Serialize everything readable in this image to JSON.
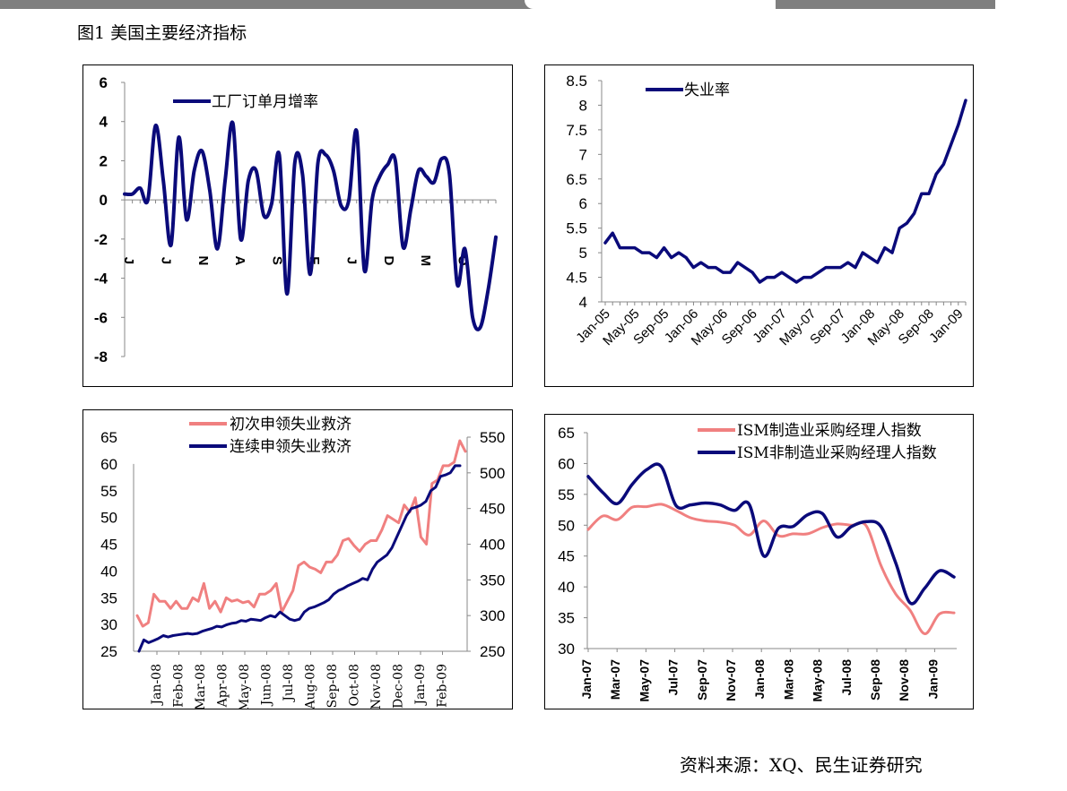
{
  "figure": {
    "title": "图1 美国主要经济指标",
    "source": "资料来源：XQ、民生证券研究"
  },
  "chart_data": [
    {
      "type": "line",
      "id": "factory-orders",
      "legend": [
        "工厂订单月增率"
      ],
      "ylim": [
        -8,
        6
      ],
      "yticks": [
        -8,
        -6,
        -4,
        -2,
        0,
        2,
        4,
        6
      ],
      "xtick_labels": [
        "J",
        "J",
        "N",
        "A",
        "S",
        "F",
        "J",
        "D",
        "M",
        "O"
      ],
      "colors": {
        "line": "#0a0a7a"
      },
      "series": [
        {
          "name": "工厂订单月增率",
          "values": [
            0.3,
            0.3,
            0.6,
            0.0,
            3.8,
            1.0,
            -2.3,
            3.2,
            -1.0,
            1.5,
            2.5,
            0.5,
            -2.5,
            1.0,
            3.9,
            -2.0,
            1.0,
            1.5,
            -0.8,
            -0.2,
            2.3,
            -4.8,
            1.9,
            1.3,
            -3.8,
            1.9,
            2.3,
            1.5,
            -0.3,
            0.0,
            3.5,
            -3.6,
            0.0,
            1.2,
            1.8,
            2.0,
            -2.4,
            -0.5,
            1.5,
            1.2,
            0.9,
            2.1,
            1.3,
            -4.3,
            -2.5,
            -6.0,
            -6.5,
            -4.6,
            -1.9
          ]
        }
      ]
    },
    {
      "type": "line",
      "id": "unemployment",
      "legend": [
        "失业率"
      ],
      "ylim": [
        4,
        8.5
      ],
      "yticks": [
        "4",
        "4.5",
        "5",
        "5.5",
        "6",
        "6.5",
        "7",
        "7.5",
        "8",
        "8.5"
      ],
      "x_labels": [
        "Jan-05",
        "May-05",
        "Sep-05",
        "Jan-06",
        "May-06",
        "Sep-06",
        "Jan-07",
        "May-07",
        "Sep-07",
        "Jan-08",
        "May-08",
        "Sep-08",
        "Jan-09"
      ],
      "colors": {
        "line": "#0a0a7a"
      },
      "series": [
        {
          "name": "失业率",
          "values": [
            5.2,
            5.4,
            5.1,
            5.1,
            5.1,
            5.0,
            5.0,
            4.9,
            5.1,
            4.9,
            5.0,
            4.9,
            4.7,
            4.8,
            4.7,
            4.7,
            4.6,
            4.6,
            4.8,
            4.7,
            4.6,
            4.4,
            4.5,
            4.5,
            4.6,
            4.5,
            4.4,
            4.5,
            4.5,
            4.6,
            4.7,
            4.7,
            4.7,
            4.8,
            4.7,
            5.0,
            4.9,
            4.8,
            5.1,
            5.0,
            5.5,
            5.6,
            5.8,
            6.2,
            6.2,
            6.6,
            6.8,
            7.2,
            7.6,
            8.1
          ]
        }
      ]
    },
    {
      "type": "line",
      "id": "jobless-claims",
      "legend": [
        "初次申领失业救济",
        "连续申领失业救济"
      ],
      "ylim_left": [
        25,
        65
      ],
      "yticks_left": [
        25,
        30,
        35,
        40,
        45,
        50,
        55,
        60,
        65
      ],
      "ylim_right": [
        250,
        550
      ],
      "yticks_right": [
        250,
        300,
        350,
        400,
        450,
        500,
        550
      ],
      "x_labels": [
        "Jan-08",
        "Feb-08",
        "Mar-08",
        "Apr-08",
        "May-08",
        "Jun-08",
        "Jul-08",
        "Aug-08",
        "Sep-08",
        "Oct-08",
        "Nov-08",
        "Dec-08",
        "Jan-09",
        "Feb-09"
      ],
      "colors": {
        "initial": "#f08080",
        "continuing": "#0a0a7a"
      },
      "series": [
        {
          "name": "初次申领失业救济",
          "axis": "right",
          "values": [
            300,
            285,
            290,
            330,
            320,
            320,
            310,
            320,
            310,
            310,
            325,
            320,
            345,
            310,
            320,
            305,
            325,
            320,
            322,
            318,
            320,
            312,
            330,
            330,
            335,
            345,
            305,
            320,
            335,
            370,
            375,
            368,
            365,
            360,
            375,
            375,
            385,
            405,
            408,
            398,
            390,
            400,
            405,
            405,
            420,
            440,
            435,
            430,
            455,
            445,
            465,
            410,
            400,
            485,
            490,
            510,
            510,
            515,
            545,
            530
          ]
        },
        {
          "name": "连续申领失业救济",
          "axis": "right",
          "values": [
            250,
            266,
            262,
            265,
            268,
            272,
            270,
            272,
            273,
            274,
            275,
            274,
            275,
            278,
            280,
            282,
            285,
            284,
            287,
            289,
            290,
            293,
            292,
            295,
            294,
            293,
            297,
            300,
            298,
            305,
            300,
            295,
            293,
            295,
            305,
            310,
            312,
            315,
            318,
            322,
            330,
            335,
            338,
            342,
            345,
            348,
            352,
            350,
            365,
            375,
            380,
            385,
            395,
            410,
            425,
            440,
            450,
            452,
            455,
            460,
            475,
            480,
            495,
            497,
            500,
            510,
            510
          ]
        }
      ]
    },
    {
      "type": "line",
      "id": "ism-indices",
      "legend": [
        "ISM制造业采购经理人指数",
        "ISM非制造业采购经理人指数"
      ],
      "ylim": [
        30,
        65
      ],
      "yticks": [
        30,
        35,
        40,
        45,
        50,
        55,
        60,
        65
      ],
      "x_labels": [
        "Jan-07",
        "Mar-07",
        "May-07",
        "Jul-07",
        "Sep-07",
        "Nov-07",
        "Jan-08",
        "Mar-08",
        "May-08",
        "Jul-08",
        "Sep-08",
        "Nov-08",
        "Jan-09"
      ],
      "colors": {
        "manufacturing": "#f08080",
        "non_manufacturing": "#0a0a7a"
      },
      "series": [
        {
          "name": "ISM制造业采购经理人指数",
          "values": [
            49.3,
            51.5,
            50.9,
            52.9,
            53.0,
            53.4,
            52.4,
            51.2,
            50.7,
            50.5,
            50.0,
            48.4,
            50.7,
            48.3,
            48.6,
            48.6,
            49.6,
            50.2,
            50.0,
            49.9,
            43.5,
            38.9,
            36.2,
            32.4,
            35.6,
            35.8
          ]
        },
        {
          "name": "ISM非制造业采购经理人指数",
          "values": [
            57.9,
            55.3,
            53.5,
            56.6,
            59.0,
            59.5,
            53.2,
            53.3,
            53.6,
            53.3,
            52.4,
            53.4,
            45.0,
            49.5,
            49.8,
            51.7,
            51.9,
            48.1,
            49.8,
            50.6,
            49.8,
            44.0,
            37.4,
            39.8,
            42.6,
            41.6
          ]
        }
      ]
    }
  ]
}
